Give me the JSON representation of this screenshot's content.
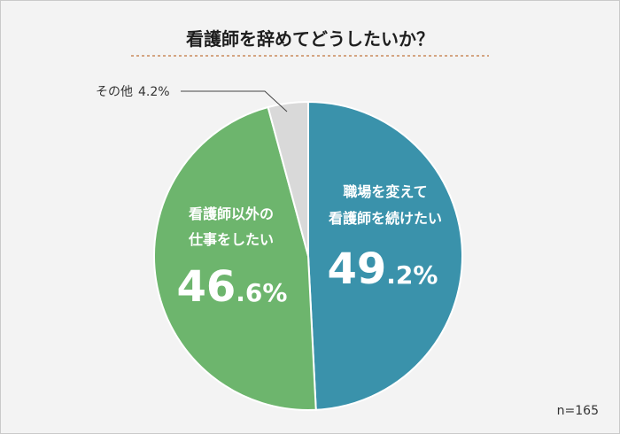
{
  "chart_data": {
    "type": "pie",
    "title": "看護師を辞めてどうしたいか？",
    "slices": [
      {
        "label_lines": [
          "職場を変えて",
          "看護師を続けたい"
        ],
        "value": 49.2,
        "value_int": "49",
        "value_dec": ".2%",
        "color": "#3a92ab"
      },
      {
        "label_lines": [
          "看護師以外の",
          "仕事をしたい"
        ],
        "value": 46.6,
        "value_int": "46",
        "value_dec": ".6%",
        "color": "#6db56d"
      },
      {
        "label": "その他",
        "value": 4.2,
        "value_text": "4.2%",
        "color": "#d9d9d9"
      }
    ],
    "sample_note": "n=165"
  }
}
